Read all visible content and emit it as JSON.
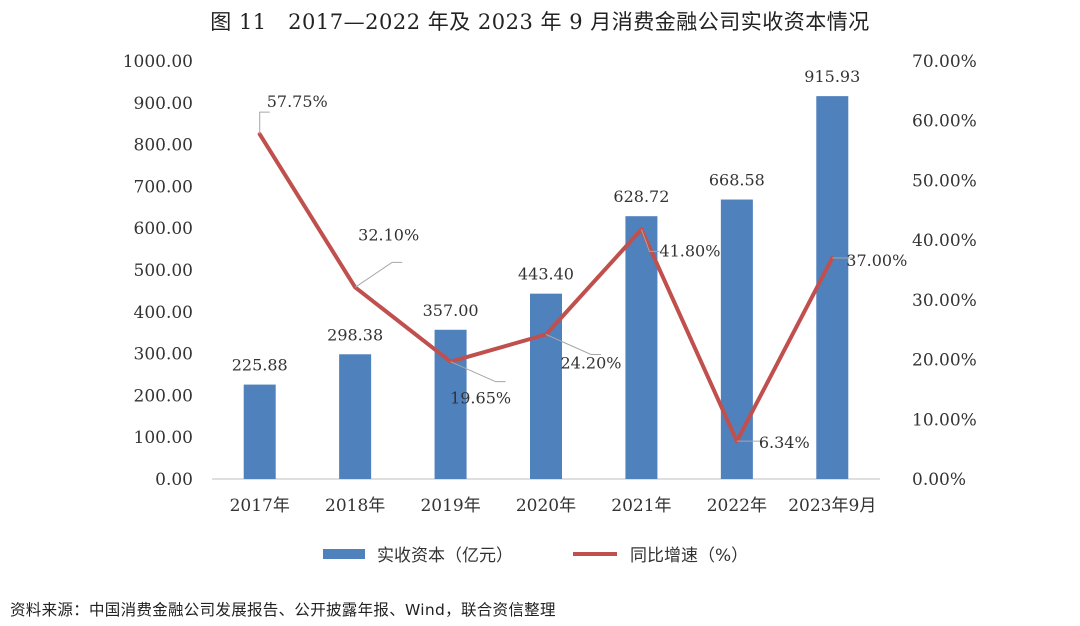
{
  "title": "图 11　2017—2022 年及 2023 年 9 月消费金融公司实收资本情况",
  "source_note": "资料来源：中国消费金融公司发展报告、公开披露年报、Wind，联合资信整理",
  "colors": {
    "bar": "#4F81BD",
    "line": "#C0504D",
    "axis": "#BFBFBF",
    "text": "#333333"
  },
  "chart_data": {
    "type": "bar",
    "categories": [
      "2017年",
      "2018年",
      "2019年",
      "2020年",
      "2021年",
      "2022年",
      "2023年9月"
    ],
    "series": [
      {
        "name": "实收资本（亿元）",
        "type": "bar",
        "axis": "left",
        "values": [
          225.88,
          298.38,
          357.0,
          443.4,
          628.72,
          668.58,
          915.93
        ],
        "labels": [
          "225.88",
          "298.38",
          "357.00",
          "443.40",
          "628.72",
          "668.58",
          "915.93"
        ]
      },
      {
        "name": "同比增速（%）",
        "type": "line",
        "axis": "right",
        "values": [
          57.75,
          32.1,
          19.65,
          24.2,
          41.8,
          6.34,
          37.0
        ],
        "labels": [
          "57.75%",
          "32.10%",
          "19.65%",
          "24.20%",
          "41.80%",
          "6.34%",
          "37.00%"
        ]
      }
    ],
    "y_left": {
      "range": [
        0,
        1000
      ],
      "ticks": [
        "0.00",
        "100.00",
        "200.00",
        "300.00",
        "400.00",
        "500.00",
        "600.00",
        "700.00",
        "800.00",
        "900.00",
        "1000.00"
      ]
    },
    "y_right": {
      "range": [
        0,
        70
      ],
      "ticks": [
        "0.00%",
        "10.00%",
        "20.00%",
        "30.00%",
        "40.00%",
        "50.00%",
        "60.00%",
        "70.00%"
      ]
    },
    "grid": false,
    "legend_position": "bottom"
  }
}
